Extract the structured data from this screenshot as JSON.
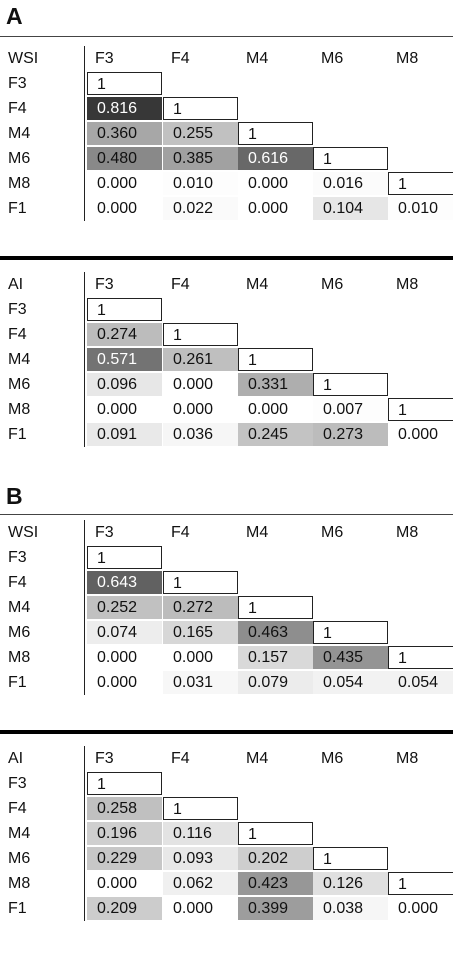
{
  "panels": [
    {
      "label": "A",
      "tables": [
        {
          "title": "WSI",
          "columns": [
            "F3",
            "F4",
            "M4",
            "M6",
            "M8"
          ],
          "rows": [
            {
              "label": "F3",
              "values": [
                "1"
              ]
            },
            {
              "label": "F4",
              "values": [
                "0.816",
                "1"
              ]
            },
            {
              "label": "M4",
              "values": [
                "0.360",
                "0.255",
                "1"
              ]
            },
            {
              "label": "M6",
              "values": [
                "0.480",
                "0.385",
                "0.616",
                "1"
              ]
            },
            {
              "label": "M8",
              "values": [
                "0.000",
                "0.010",
                "0.000",
                "0.016",
                "1"
              ]
            },
            {
              "label": "F1",
              "values": [
                "0.000",
                "0.022",
                "0.000",
                "0.104",
                "0.010"
              ]
            }
          ]
        },
        {
          "title": "AI",
          "columns": [
            "F3",
            "F4",
            "M4",
            "M6",
            "M8"
          ],
          "rows": [
            {
              "label": "F3",
              "values": [
                "1"
              ]
            },
            {
              "label": "F4",
              "values": [
                "0.274",
                "1"
              ]
            },
            {
              "label": "M4",
              "values": [
                "0.571",
                "0.261",
                "1"
              ]
            },
            {
              "label": "M6",
              "values": [
                "0.096",
                "0.000",
                "0.331",
                "1"
              ]
            },
            {
              "label": "M8",
              "values": [
                "0.000",
                "0.000",
                "0.000",
                "0.007",
                "1"
              ]
            },
            {
              "label": "F1",
              "values": [
                "0.091",
                "0.036",
                "0.245",
                "0.273",
                "0.000"
              ]
            }
          ]
        }
      ]
    },
    {
      "label": "B",
      "tables": [
        {
          "title": "WSI",
          "columns": [
            "F3",
            "F4",
            "M4",
            "M6",
            "M8"
          ],
          "rows": [
            {
              "label": "F3",
              "values": [
                "1"
              ]
            },
            {
              "label": "F4",
              "values": [
                "0.643",
                "1"
              ]
            },
            {
              "label": "M4",
              "values": [
                "0.252",
                "0.272",
                "1"
              ]
            },
            {
              "label": "M6",
              "values": [
                "0.074",
                "0.165",
                "0.463",
                "1"
              ]
            },
            {
              "label": "M8",
              "values": [
                "0.000",
                "0.000",
                "0.157",
                "0.435",
                "1"
              ]
            },
            {
              "label": "F1",
              "values": [
                "0.000",
                "0.031",
                "0.079",
                "0.054",
                "0.054"
              ]
            }
          ]
        },
        {
          "title": "AI",
          "columns": [
            "F3",
            "F4",
            "M4",
            "M6",
            "M8"
          ],
          "rows": [
            {
              "label": "F3",
              "values": [
                "1"
              ]
            },
            {
              "label": "F4",
              "values": [
                "0.258",
                "1"
              ]
            },
            {
              "label": "M4",
              "values": [
                "0.196",
                "0.116",
                "1"
              ]
            },
            {
              "label": "M6",
              "values": [
                "0.229",
                "0.093",
                "0.202",
                "1"
              ]
            },
            {
              "label": "M8",
              "values": [
                "0.000",
                "0.062",
                "0.423",
                "0.126",
                "1"
              ]
            },
            {
              "label": "F1",
              "values": [
                "0.209",
                "0.000",
                "0.399",
                "0.038",
                "0.000"
              ]
            }
          ]
        }
      ]
    }
  ]
}
